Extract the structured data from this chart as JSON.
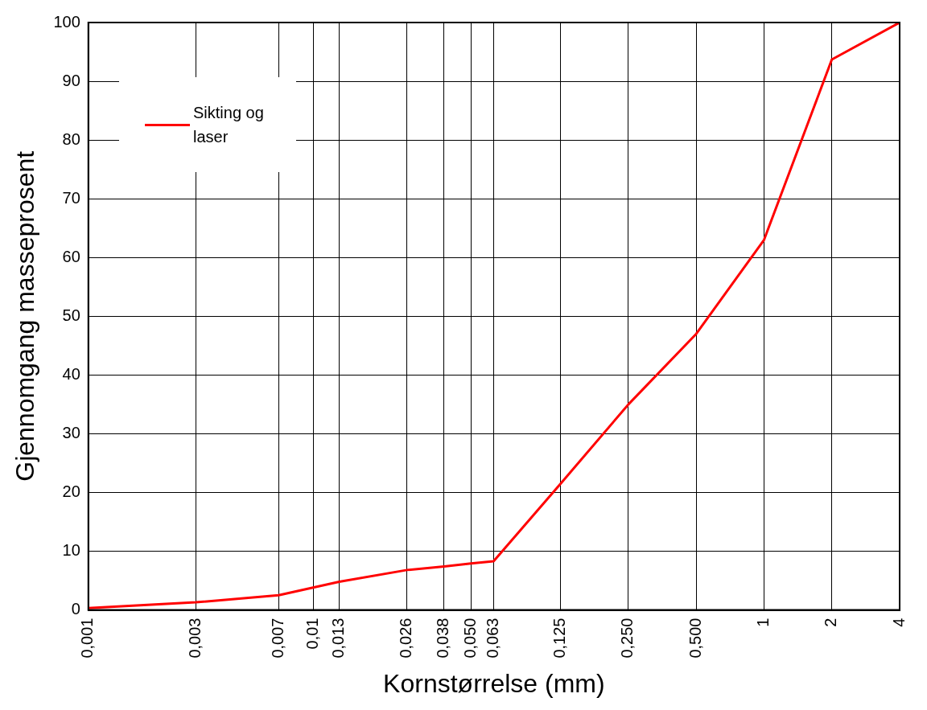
{
  "chart_data": {
    "type": "line",
    "xlabel": "Kornstørrelse (mm)",
    "ylabel": "Gjennomgang masseprosent",
    "log": "x",
    "x": [
      0.001,
      0.003,
      0.007,
      0.013,
      0.026,
      0.038,
      0.05,
      0.063,
      0.125,
      0.25,
      0.5,
      1,
      2,
      4
    ],
    "series": [
      {
        "name": "Sikting og laser",
        "color": "#ff0000",
        "values": [
          0.3,
          1.3,
          2.5,
          4.8,
          6.8,
          7.4,
          7.9,
          8.3,
          21.5,
          35,
          47,
          63,
          93.7,
          100
        ]
      }
    ],
    "xlim": [
      0.001,
      4
    ],
    "xticks": [
      {
        "value": 0.001,
        "label": "0,001"
      },
      {
        "value": 0.003,
        "label": "0,003"
      },
      {
        "value": 0.007,
        "label": "0,007"
      },
      {
        "value": 0.01,
        "label": "0,01"
      },
      {
        "value": 0.013,
        "label": "0,013"
      },
      {
        "value": 0.026,
        "label": "0,026"
      },
      {
        "value": 0.038,
        "label": "0,038"
      },
      {
        "value": 0.05,
        "label": "0,050"
      },
      {
        "value": 0.063,
        "label": "0,063"
      },
      {
        "value": 0.125,
        "label": "0,125"
      },
      {
        "value": 0.25,
        "label": "0,250"
      },
      {
        "value": 0.5,
        "label": "0,500"
      },
      1,
      2,
      4
    ],
    "ylim": [
      0,
      100
    ],
    "yticks": [
      0,
      10,
      20,
      30,
      40,
      50,
      60,
      70,
      80,
      90,
      100
    ],
    "grid": true,
    "legend": "top left",
    "marker": "none",
    "line_style": "solid"
  }
}
